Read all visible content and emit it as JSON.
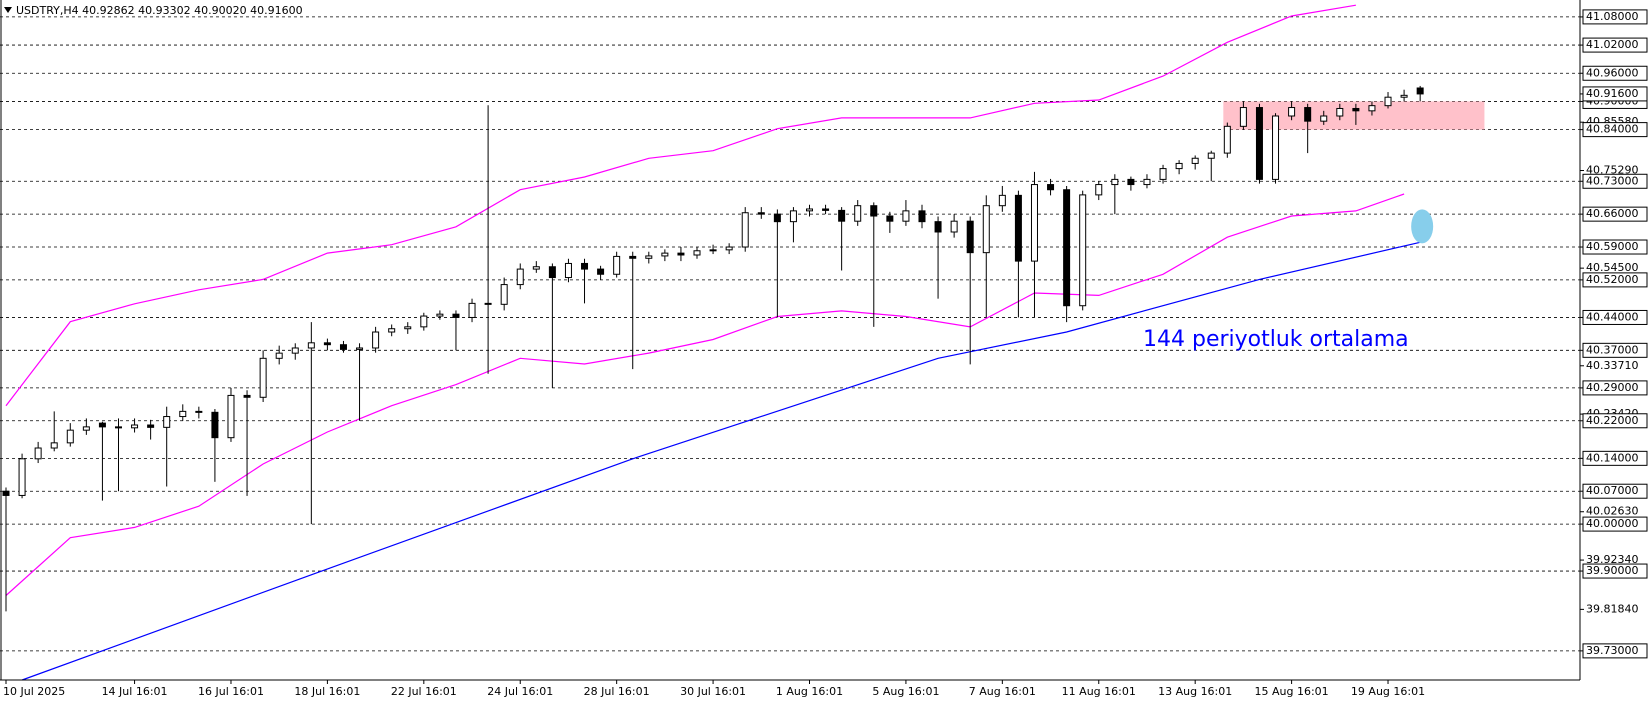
{
  "chart_data": {
    "type": "candlestick",
    "title": "USDTRY,H4  40.92862 40.93302 40.90020 40.91600",
    "annotation": "144 periyotluk ortalama",
    "categories": [
      "10 Jul 2025",
      null,
      null,
      null,
      null,
      null,
      null,
      null,
      "14 Jul 16:01",
      null,
      null,
      null,
      null,
      null,
      "16 Jul 16:01",
      null,
      null,
      null,
      null,
      null,
      "18 Jul 16:01",
      null,
      null,
      null,
      null,
      null,
      "22 Jul 16:01",
      null,
      null,
      null,
      null,
      null,
      "24 Jul 16:01",
      null,
      null,
      null,
      null,
      null,
      "28 Jul 16:01",
      null,
      null,
      null,
      null,
      null,
      "30 Jul 16:01",
      null,
      null,
      null,
      null,
      null,
      "1 Aug 16:01",
      null,
      null,
      null,
      null,
      null,
      "5 Aug 16:01",
      null,
      null,
      null,
      null,
      null,
      "7 Aug 16:01",
      null,
      null,
      null,
      null,
      null,
      "11 Aug 16:01",
      null,
      null,
      null,
      null,
      null,
      "13 Aug 16:01",
      null,
      null,
      null,
      null,
      null,
      "15 Aug 16:01",
      null,
      null,
      null,
      null,
      null,
      "19 Aug 16:01",
      null,
      null
    ],
    "ohlc": [
      [
        40.07,
        40.078,
        39.814,
        40.061
      ],
      [
        40.061,
        40.15,
        40.055,
        40.139
      ],
      [
        40.139,
        40.175,
        40.13,
        40.162
      ],
      [
        40.162,
        40.24,
        40.155,
        40.173
      ],
      [
        40.173,
        40.215,
        40.165,
        40.2
      ],
      [
        40.2,
        40.225,
        40.19,
        40.207
      ],
      [
        40.215,
        40.218,
        40.05,
        40.207
      ],
      [
        40.207,
        40.225,
        40.07,
        40.205
      ],
      [
        40.205,
        40.225,
        40.195,
        40.211
      ],
      [
        40.211,
        40.222,
        40.18,
        40.206
      ],
      [
        40.206,
        40.25,
        40.08,
        40.229
      ],
      [
        40.229,
        40.255,
        40.22,
        40.24
      ],
      [
        40.24,
        40.25,
        40.225,
        40.238
      ],
      [
        40.238,
        40.245,
        40.09,
        40.184
      ],
      [
        40.184,
        40.29,
        40.175,
        40.274
      ],
      [
        40.274,
        40.285,
        40.06,
        40.27
      ],
      [
        40.27,
        40.37,
        40.26,
        40.353
      ],
      [
        40.353,
        40.38,
        40.34,
        40.364
      ],
      [
        40.364,
        40.385,
        40.35,
        40.375
      ],
      [
        40.375,
        40.43,
        40.0,
        40.386
      ],
      [
        40.386,
        40.395,
        40.37,
        40.382
      ],
      [
        40.382,
        40.39,
        40.365,
        40.372
      ],
      [
        40.372,
        40.385,
        40.22,
        40.375
      ],
      [
        40.375,
        40.42,
        40.365,
        40.409
      ],
      [
        40.409,
        40.425,
        40.4,
        40.416
      ],
      [
        40.416,
        40.43,
        40.405,
        40.42
      ],
      [
        40.42,
        40.45,
        40.412,
        40.443
      ],
      [
        40.443,
        40.455,
        40.435,
        40.447
      ],
      [
        40.447,
        40.455,
        40.37,
        40.44
      ],
      [
        40.44,
        40.48,
        40.43,
        40.47
      ],
      [
        40.47,
        40.892,
        40.32,
        40.468
      ],
      [
        40.468,
        40.525,
        40.455,
        40.51
      ],
      [
        40.51,
        40.555,
        40.5,
        40.543
      ],
      [
        40.543,
        40.56,
        40.535,
        40.548
      ],
      [
        40.548,
        40.555,
        40.29,
        40.525
      ],
      [
        40.525,
        40.565,
        40.515,
        40.555
      ],
      [
        40.555,
        40.565,
        40.47,
        40.543
      ],
      [
        40.543,
        40.55,
        40.52,
        40.532
      ],
      [
        40.532,
        40.58,
        40.525,
        40.57
      ],
      [
        40.57,
        40.58,
        40.33,
        40.566
      ],
      [
        40.566,
        40.58,
        40.555,
        40.571
      ],
      [
        40.571,
        40.585,
        40.56,
        40.577
      ],
      [
        40.577,
        40.59,
        40.56,
        40.573
      ],
      [
        40.573,
        40.59,
        40.565,
        40.582
      ],
      [
        40.582,
        40.595,
        40.575,
        40.584
      ],
      [
        40.584,
        40.598,
        40.575,
        40.59
      ],
      [
        40.59,
        40.675,
        40.58,
        40.663
      ],
      [
        40.663,
        40.675,
        40.65,
        40.66
      ],
      [
        40.66,
        40.67,
        40.44,
        40.644
      ],
      [
        40.644,
        40.675,
        40.6,
        40.667
      ],
      [
        40.667,
        40.68,
        40.655,
        40.671
      ],
      [
        40.671,
        40.68,
        40.66,
        40.668
      ],
      [
        40.668,
        40.675,
        40.54,
        40.645
      ],
      [
        40.645,
        40.69,
        40.635,
        40.678
      ],
      [
        40.678,
        40.685,
        40.42,
        40.656
      ],
      [
        40.656,
        40.665,
        40.62,
        40.645
      ],
      [
        40.645,
        40.69,
        40.635,
        40.667
      ],
      [
        40.667,
        40.68,
        40.63,
        40.644
      ],
      [
        40.644,
        40.655,
        40.48,
        40.622
      ],
      [
        40.622,
        40.66,
        40.61,
        40.645
      ],
      [
        40.645,
        40.655,
        40.34,
        40.578
      ],
      [
        40.578,
        40.7,
        40.44,
        40.678
      ],
      [
        40.678,
        40.72,
        40.665,
        40.7
      ],
      [
        40.7,
        40.71,
        40.44,
        40.56
      ],
      [
        40.56,
        40.75,
        40.44,
        40.723
      ],
      [
        40.723,
        40.735,
        40.7,
        40.712
      ],
      [
        40.712,
        40.72,
        40.43,
        40.465
      ],
      [
        40.465,
        40.71,
        40.455,
        40.701
      ],
      [
        40.701,
        40.73,
        40.69,
        40.723
      ],
      [
        40.723,
        40.745,
        40.66,
        40.734
      ],
      [
        40.734,
        40.74,
        40.71,
        40.723
      ],
      [
        40.723,
        40.745,
        40.715,
        40.734
      ],
      [
        40.734,
        40.765,
        40.725,
        40.757
      ],
      [
        40.757,
        40.775,
        40.745,
        40.768
      ],
      [
        40.768,
        40.785,
        40.755,
        40.779
      ],
      [
        40.779,
        40.795,
        40.73,
        40.79
      ],
      [
        40.79,
        40.855,
        40.78,
        40.847
      ],
      [
        40.847,
        40.9,
        40.84,
        40.887
      ],
      [
        40.887,
        40.895,
        40.725,
        40.734
      ],
      [
        40.734,
        40.875,
        40.725,
        40.869
      ],
      [
        40.869,
        40.9,
        40.86,
        40.887
      ],
      [
        40.887,
        40.895,
        40.79,
        40.858
      ],
      [
        40.858,
        40.88,
        40.85,
        40.869
      ],
      [
        40.869,
        40.895,
        40.86,
        40.885
      ],
      [
        40.885,
        40.895,
        40.85,
        40.88
      ],
      [
        40.88,
        40.9,
        40.87,
        40.891
      ],
      [
        40.891,
        40.92,
        40.885,
        40.909
      ],
      [
        40.909,
        40.925,
        40.9,
        40.913
      ],
      [
        40.92862,
        40.93302,
        40.9002,
        40.916
      ]
    ],
    "up_color": "#ffffff",
    "down_color": "#000000",
    "upper_band": {
      "color": "#ff00ff",
      "x": [
        0,
        4,
        8,
        12,
        16,
        20,
        24,
        28,
        32,
        36,
        40,
        44,
        48,
        52,
        56,
        60,
        64,
        68,
        72,
        76,
        80,
        84
      ],
      "values": [
        40.252,
        40.431,
        40.469,
        40.499,
        40.521,
        40.577,
        40.595,
        40.633,
        40.712,
        40.739,
        40.779,
        40.795,
        40.842,
        40.865,
        40.865,
        40.865,
        40.896,
        40.903,
        40.954,
        41.026,
        41.082,
        41.105
      ]
    },
    "lower_band": {
      "color": "#ff00ff",
      "x": [
        0,
        4,
        8,
        12,
        16,
        20,
        24,
        28,
        32,
        36,
        40,
        44,
        48,
        52,
        56,
        60,
        64,
        68,
        72,
        76,
        80,
        84,
        87
      ],
      "values": [
        39.848,
        39.971,
        39.993,
        40.038,
        40.128,
        40.196,
        40.252,
        40.297,
        40.353,
        40.341,
        40.364,
        40.393,
        40.442,
        40.454,
        40.442,
        40.42,
        40.492,
        40.487,
        40.532,
        40.611,
        40.656,
        40.667,
        40.703
      ]
    },
    "moving_average": {
      "color": "#0000ff",
      "x": [
        1,
        19,
        39,
        58,
        66,
        78,
        88
      ],
      "values": [
        39.668,
        39.892,
        40.139,
        40.353,
        40.409,
        40.521,
        40.6
      ]
    },
    "zone": {
      "color": "#ffb6c1",
      "x": [
        76,
        92
      ],
      "values": [
        40.84,
        40.9
      ]
    },
    "ylim": [
      39.668,
      41.116
    ],
    "levels": [
      {
        "value": 41.08,
        "label": "41.08000"
      },
      {
        "value": 41.02,
        "label": "41.02000"
      },
      {
        "value": 40.96,
        "label": "40.96000"
      },
      {
        "value": 40.9,
        "label": "40.90000"
      },
      {
        "value": 40.84,
        "label": "40.84000"
      },
      {
        "value": 40.73,
        "label": "40.73000"
      },
      {
        "value": 40.66,
        "label": "40.66000"
      },
      {
        "value": 40.59,
        "label": "40.59000"
      },
      {
        "value": 40.52,
        "label": "40.52000"
      },
      {
        "value": 40.44,
        "label": "40.44000"
      },
      {
        "value": 40.37,
        "label": "40.37000"
      },
      {
        "value": 40.29,
        "label": "40.29000"
      },
      {
        "value": 40.22,
        "label": "40.22000"
      },
      {
        "value": 40.14,
        "label": "40.14000"
      },
      {
        "value": 40.07,
        "label": "40.07000"
      },
      {
        "value": 40,
        "label": "40.00000"
      },
      {
        "value": 39.9,
        "label": "39.90000"
      },
      {
        "value": 39.73,
        "label": "39.73000"
      }
    ],
    "yticks": [
      {
        "value": 40.8558,
        "label": "40.85580"
      },
      {
        "value": 40.7529,
        "label": "40.75290"
      },
      {
        "value": 40.545,
        "label": "40.54500"
      },
      {
        "value": 40.3371,
        "label": "40.33710"
      },
      {
        "value": 40.2342,
        "label": "40.23420"
      },
      {
        "value": 40.0263,
        "label": "40.02630"
      },
      {
        "value": 39.9234,
        "label": "39.92340"
      },
      {
        "value": 39.8184,
        "label": "39.81840"
      }
    ],
    "current_price": {
      "value": 40.916,
      "label": "40.91600"
    }
  }
}
